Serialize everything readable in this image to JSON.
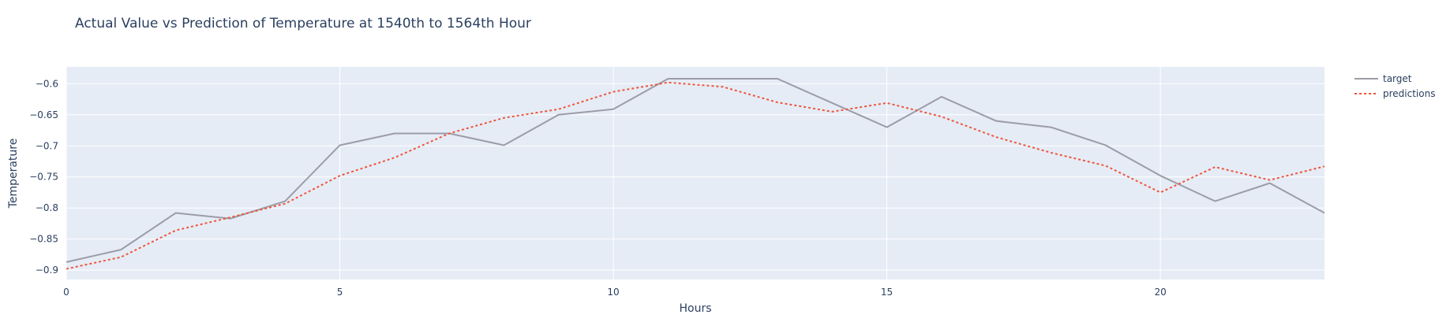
{
  "chart_data": {
    "type": "line",
    "title": "Actual Value vs Prediction of Temperature at 1540th to 1564th Hour",
    "xlabel": "Hours",
    "ylabel": "Temperature",
    "x": [
      0,
      1,
      2,
      3,
      4,
      5,
      6,
      7,
      8,
      9,
      10,
      11,
      12,
      13,
      14,
      15,
      16,
      17,
      18,
      19,
      20,
      21,
      22,
      23
    ],
    "xlim": [
      0,
      23
    ],
    "ylim": [
      -0.915,
      -0.573
    ],
    "x_ticks": [
      0,
      5,
      10,
      15,
      20
    ],
    "x_tick_labels": [
      "0",
      "5",
      "10",
      "15",
      "20"
    ],
    "y_ticks": [
      -0.9,
      -0.85,
      -0.8,
      -0.75,
      -0.7,
      -0.65,
      -0.6
    ],
    "y_tick_labels": [
      "−0.9",
      "−0.85",
      "−0.8",
      "−0.75",
      "−0.7",
      "−0.65",
      "−0.6"
    ],
    "grid": true,
    "legend_position": "top-right, outside plot",
    "background_color": "#e5ecf6",
    "series": [
      {
        "name": "target",
        "color": "#9c9ca9",
        "dash": "solid",
        "values": [
          -0.887,
          -0.867,
          -0.808,
          -0.817,
          -0.789,
          -0.699,
          -0.68,
          -0.68,
          -0.699,
          -0.65,
          -0.641,
          -0.592,
          -0.592,
          -0.592,
          -0.631,
          -0.67,
          -0.621,
          -0.66,
          -0.67,
          -0.699,
          -0.748,
          -0.789,
          -0.76,
          -0.808
        ]
      },
      {
        "name": "predictions",
        "color": "#ef553b",
        "dash": "dot",
        "values": [
          -0.898,
          -0.879,
          -0.836,
          -0.815,
          -0.793,
          -0.748,
          -0.719,
          -0.68,
          -0.655,
          -0.641,
          -0.613,
          -0.598,
          -0.605,
          -0.63,
          -0.645,
          -0.631,
          -0.653,
          -0.686,
          -0.711,
          -0.732,
          -0.775,
          -0.734,
          -0.755,
          -0.733
        ]
      }
    ]
  }
}
